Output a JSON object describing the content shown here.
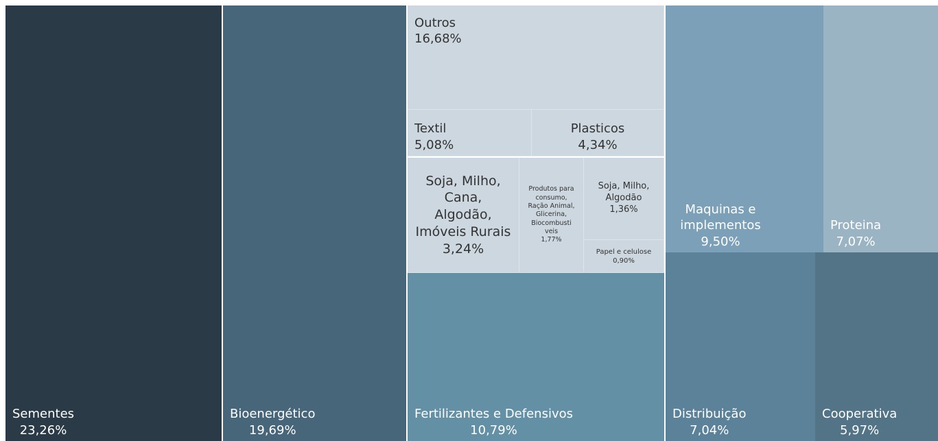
{
  "chart_data": {
    "type": "treemap",
    "categories": [
      "Sementes",
      "Bioenergético",
      "Fertilizantes e Defensivos",
      "Outros",
      "Textil",
      "Plasticos",
      "Soja, Milho, Cana, Algodão, Imóveis Rurais",
      "Produtos para consumo, Ração Animal, Glicerina, Biocombusti veis",
      "Soja, Milho, Algodão",
      "Papel e celulose",
      "Maquinas e implementos",
      "Proteina",
      "Distribuição",
      "Cooperativa"
    ],
    "values": [
      23.26,
      19.69,
      10.79,
      16.68,
      5.08,
      4.34,
      3.24,
      1.77,
      1.36,
      0.9,
      9.5,
      7.07,
      7.04,
      5.97
    ],
    "value_labels": [
      "23,26%",
      "19,69%",
      "10,79%",
      "16,68%",
      "5,08%",
      "4,34%",
      "3,24%",
      "1,77%",
      "1,36%",
      "0,90%",
      "9,50%",
      "7,07%",
      "7,04%",
      "5,97%"
    ],
    "colors": [
      "#2b3a47",
      "#48667a",
      "#6490a6",
      "#cdd7df",
      "#cdd7df",
      "#cdd7df",
      "#cdd7df",
      "#cdd7df",
      "#cdd7df",
      "#cdd7df",
      "#7ba0b7",
      "#9ab4c4",
      "#5b8299",
      "#527486"
    ]
  }
}
